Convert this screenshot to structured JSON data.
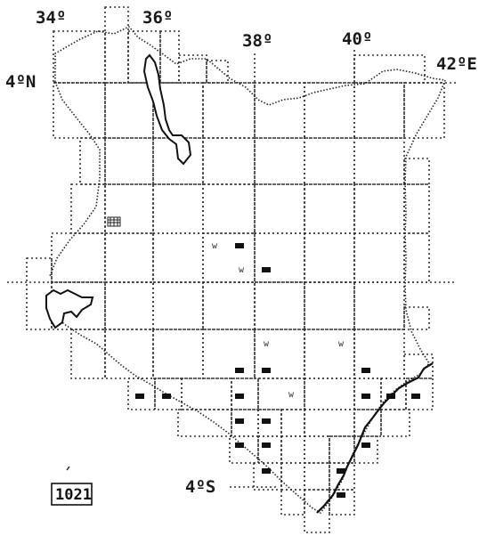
{
  "map": {
    "colors": {
      "ink": "#111111",
      "grid": "#333333",
      "paper": "#ffffff"
    },
    "longitude_labels": [
      "34º",
      "36º",
      "38º",
      "40º",
      "42ºE"
    ],
    "latitude_labels": [
      "4ºN",
      "4ºS"
    ],
    "marker_letter": "w",
    "figure_id": "1021"
  }
}
